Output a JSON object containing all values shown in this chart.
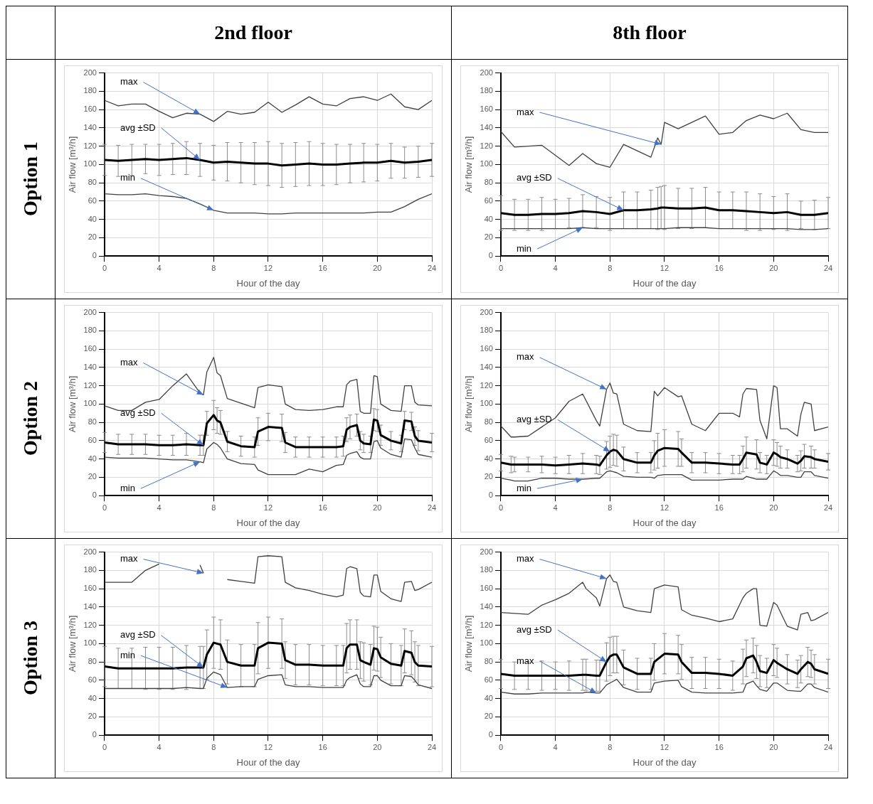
{
  "chart_data": [
    {
      "type": "line",
      "title": "2nd floor",
      "subtitle": "Option 1",
      "xlabel": "Hour of the day",
      "ylabel": "Air flow [m³/h]",
      "xlim": [
        0,
        24
      ],
      "xticks": [
        0,
        4,
        8,
        12,
        16,
        20,
        24
      ],
      "ylim": [
        0,
        200
      ],
      "yticks": [
        0,
        20,
        40,
        60,
        80,
        100,
        120,
        140,
        160,
        180,
        200
      ],
      "grid": true,
      "x": [
        0,
        1,
        2,
        3,
        4,
        5,
        6,
        7,
        8,
        9,
        10,
        11,
        12,
        13,
        14,
        15,
        16,
        17,
        18,
        19,
        20,
        21,
        22,
        23,
        24
      ],
      "series": [
        {
          "color": "#404040",
          "values": [
            170,
            164,
            166,
            166,
            158,
            151,
            156,
            155,
            147,
            158,
            155,
            157,
            168,
            157,
            165,
            174,
            166,
            164,
            172,
            174,
            170,
            177,
            163,
            160,
            170
          ]
        },
        {
          "color": "#000000",
          "values": [
            105,
            104,
            105,
            106,
            105,
            106,
            107,
            105,
            102,
            103,
            102,
            101,
            101,
            99,
            100,
            101,
            100,
            100,
            101,
            102,
            102,
            104,
            102,
            103,
            105
          ],
          "errors": [
            17,
            17,
            17,
            16,
            17,
            17,
            18,
            18,
            19,
            21,
            22,
            23,
            24,
            24,
            24,
            24,
            23,
            22,
            21,
            21,
            20,
            19,
            17,
            17,
            18
          ]
        },
        {
          "color": "#404040",
          "values": [
            68,
            67,
            67,
            68,
            66,
            65,
            63,
            57,
            50,
            47,
            47,
            47,
            46,
            46,
            47,
            47,
            47,
            47,
            47,
            47,
            48,
            48,
            54,
            62,
            68
          ]
        }
      ],
      "annotations": [
        {
          "text": "max",
          "x": 7,
          "y": 155
        },
        {
          "text": "avg ±SD",
          "x": 7,
          "y": 105
        },
        {
          "text": "min",
          "x": 8,
          "y": 50
        }
      ]
    },
    {
      "type": "line",
      "title": "8th floor",
      "xlabel": "Hour of the day",
      "ylabel": "Air flow [m³/h]",
      "xlim": [
        0,
        24
      ],
      "xticks": [
        0,
        4,
        8,
        12,
        16,
        20,
        24
      ],
      "ylim": [
        0,
        200
      ],
      "yticks": [
        0,
        20,
        40,
        60,
        80,
        100,
        120,
        140,
        160,
        180,
        200
      ],
      "grid": true,
      "x": [
        0,
        1,
        2,
        3,
        4,
        5,
        6,
        7,
        8,
        9,
        10,
        11,
        11.5,
        11.75,
        12,
        13,
        14,
        15,
        16,
        17,
        18,
        19,
        20,
        21,
        22,
        23,
        24
      ],
      "series": [
        {
          "color": "#404040",
          "values": [
            136,
            119,
            120,
            121,
            110,
            99,
            112,
            101,
            97,
            122,
            115,
            108,
            129,
            122,
            146,
            139,
            146,
            153,
            133,
            135,
            148,
            154,
            150,
            156,
            138,
            135,
            135
          ]
        },
        {
          "color": "#000000",
          "values": [
            47,
            45,
            45,
            46,
            46,
            47,
            49,
            48,
            46,
            50,
            50,
            51,
            52,
            53,
            53,
            52,
            52,
            53,
            50,
            50,
            49,
            48,
            47,
            48,
            45,
            45,
            47
          ],
          "errors": [
            19,
            17,
            17,
            18,
            16,
            16,
            18,
            17,
            18,
            20,
            20,
            21,
            23,
            23,
            24,
            22,
            22,
            22,
            20,
            20,
            21,
            20,
            18,
            20,
            15,
            16,
            17
          ]
        },
        {
          "color": "#404040",
          "values": [
            30,
            30,
            30,
            30,
            30,
            30,
            31,
            30,
            30,
            30,
            30,
            30,
            30,
            30,
            30,
            31,
            31,
            31,
            30,
            30,
            30,
            30,
            30,
            30,
            29,
            29,
            30
          ]
        }
      ],
      "annotations": [
        {
          "text": "max",
          "x": 11.75,
          "y": 122
        },
        {
          "text": "avg ±SD",
          "x": 9,
          "y": 50
        },
        {
          "text": "min",
          "x": 6,
          "y": 31
        }
      ]
    },
    {
      "type": "line",
      "subtitle": "Option 2",
      "xlabel": "Hour of the day",
      "ylabel": "Air flow [m³/h]",
      "xlim": [
        0,
        24
      ],
      "xticks": [
        0,
        4,
        8,
        12,
        16,
        20,
        24
      ],
      "ylim": [
        0,
        200
      ],
      "yticks": [
        0,
        20,
        40,
        60,
        80,
        100,
        120,
        140,
        160,
        180,
        200
      ],
      "grid": true,
      "x": [
        0,
        1,
        2,
        3,
        4,
        5,
        6,
        7,
        7.25,
        7.5,
        8,
        8.25,
        8.5,
        9,
        10,
        11,
        11.25,
        12,
        13,
        13.25,
        14,
        15,
        16,
        17,
        17.5,
        17.75,
        18,
        18.5,
        18.75,
        19,
        19.5,
        19.75,
        20,
        20.25,
        21,
        21.75,
        22,
        22.5,
        22.75,
        23,
        24
      ],
      "series": [
        {
          "color": "#404040",
          "values": [
            98,
            93,
            93,
            102,
            105,
            120,
            133,
            112,
            110,
            135,
            151,
            134,
            131,
            106,
            101,
            96,
            118,
            121,
            119,
            100,
            94,
            93,
            94,
            97,
            97,
            121,
            125,
            127,
            92,
            90,
            90,
            131,
            130,
            100,
            93,
            92,
            120,
            120,
            102,
            99,
            98
          ]
        },
        {
          "color": "#000000",
          "values": [
            58,
            56,
            56,
            56,
            55,
            55,
            56,
            55,
            55,
            79,
            88,
            82,
            80,
            59,
            54,
            53,
            70,
            75,
            74,
            58,
            53,
            53,
            53,
            53,
            54,
            72,
            75,
            77,
            60,
            57,
            56,
            83,
            82,
            66,
            60,
            57,
            82,
            81,
            65,
            60,
            58
          ],
          "errors": [
            11,
            11,
            11,
            11,
            11,
            11,
            12,
            11,
            11,
            13,
            16,
            14,
            13,
            11,
            11,
            11,
            15,
            15,
            15,
            11,
            11,
            11,
            11,
            11,
            11,
            13,
            13,
            12,
            10,
            10,
            9,
            12,
            12,
            11,
            10,
            9,
            10,
            10,
            10,
            11,
            10
          ]
        },
        {
          "color": "#404040",
          "values": [
            42,
            41,
            41,
            41,
            40,
            39,
            39,
            37,
            36,
            51,
            58,
            56,
            52,
            40,
            35,
            34,
            28,
            23,
            23,
            23,
            23,
            29,
            26,
            33,
            34,
            44,
            46,
            48,
            42,
            40,
            40,
            59,
            60,
            52,
            45,
            42,
            62,
            61,
            52,
            45,
            42
          ]
        }
      ],
      "annotations": [
        {
          "text": "max",
          "x": 7.25,
          "y": 110
        },
        {
          "text": "avg ±SD",
          "x": 7.25,
          "y": 55
        },
        {
          "text": "min",
          "x": 7,
          "y": 37
        }
      ]
    },
    {
      "type": "line",
      "xlabel": "Hour of the day",
      "ylabel": "Air flow [m³/h]",
      "xlim": [
        0,
        24
      ],
      "xticks": [
        0,
        4,
        8,
        12,
        16,
        20,
        24
      ],
      "ylim": [
        0,
        200
      ],
      "yticks": [
        0,
        20,
        40,
        60,
        80,
        100,
        120,
        140,
        160,
        180,
        200
      ],
      "grid": true,
      "x": [
        0,
        0.75,
        1,
        2,
        3,
        4,
        5,
        6,
        7,
        7.25,
        7.75,
        8,
        8.25,
        8.5,
        9,
        10,
        11,
        11.25,
        11.5,
        12,
        13,
        13.25,
        14,
        15,
        16,
        17,
        17.5,
        17.75,
        18,
        18.75,
        19,
        19.5,
        20,
        20.25,
        20.5,
        21,
        21.75,
        22,
        22.25,
        22.75,
        23,
        24
      ],
      "series": [
        {
          "color": "#404040",
          "values": [
            76,
            64,
            64,
            65,
            75,
            85,
            103,
            111,
            82,
            76,
            116,
            123,
            112,
            111,
            78,
            71,
            70,
            114,
            109,
            118,
            108,
            109,
            78,
            71,
            90,
            90,
            86,
            111,
            117,
            116,
            82,
            62,
            120,
            118,
            73,
            73,
            65,
            89,
            102,
            100,
            71,
            75
          ]
        },
        {
          "color": "#000000",
          "values": [
            36,
            34,
            34,
            34,
            34,
            33,
            34,
            35,
            34,
            33,
            44,
            48,
            50,
            49,
            40,
            36,
            36,
            44,
            49,
            52,
            51,
            47,
            36,
            36,
            35,
            34,
            34,
            40,
            47,
            45,
            36,
            34,
            47,
            45,
            42,
            40,
            35,
            38,
            43,
            42,
            40,
            37
          ],
          "errors": [
            9,
            9,
            8,
            8,
            9,
            9,
            10,
            11,
            10,
            10,
            15,
            17,
            17,
            17,
            13,
            11,
            11,
            16,
            19,
            20,
            19,
            15,
            11,
            11,
            11,
            10,
            10,
            14,
            17,
            16,
            11,
            10,
            14,
            13,
            12,
            10,
            9,
            11,
            13,
            12,
            10,
            9
          ]
        },
        {
          "color": "#404040",
          "values": [
            19,
            17,
            16,
            16,
            19,
            19,
            18,
            18,
            19,
            19,
            26,
            27,
            26,
            25,
            21,
            20,
            20,
            19,
            22,
            23,
            23,
            23,
            17,
            17,
            17,
            18,
            18,
            18,
            21,
            18,
            18,
            18,
            27,
            25,
            22,
            22,
            20,
            20,
            26,
            26,
            22,
            19
          ]
        }
      ],
      "annotations": [
        {
          "text": "max",
          "x": 7.75,
          "y": 116
        },
        {
          "text": "avg ±SD",
          "x": 8,
          "y": 48
        },
        {
          "text": "min",
          "x": 6,
          "y": 18
        }
      ]
    },
    {
      "type": "line",
      "subtitle": "Option 3",
      "xlabel": "Hour of the day",
      "ylabel": "Air flow [m³/h]",
      "xlim": [
        0,
        24
      ],
      "xticks": [
        0,
        4,
        8,
        12,
        16,
        20,
        24
      ],
      "ylim": [
        0,
        200
      ],
      "yticks": [
        0,
        20,
        40,
        60,
        80,
        100,
        120,
        140,
        160,
        180,
        200
      ],
      "grid": true,
      "x": [
        0,
        1,
        2,
        3,
        4,
        5,
        6,
        7,
        7.25,
        7.5,
        8,
        8.5,
        9,
        10,
        11,
        11.25,
        12,
        13,
        13.25,
        14,
        15,
        16,
        17,
        17.5,
        17.75,
        18,
        18.5,
        18.75,
        19,
        19.5,
        19.75,
        20,
        20.25,
        21,
        21.75,
        22,
        22.5,
        22.75,
        23,
        24
      ],
      "series": [
        {
          "color": "#404040",
          "values": [
            167,
            167,
            167,
            180,
            187,
            null,
            null,
            186,
            177,
            null,
            null,
            null,
            170,
            168,
            166,
            195,
            196,
            195,
            167,
            161,
            158,
            154,
            151,
            153,
            182,
            184,
            182,
            156,
            152,
            151,
            175,
            175,
            157,
            149,
            146,
            167,
            168,
            158,
            159,
            167
          ]
        },
        {
          "color": "#000000",
          "values": [
            75,
            73,
            73,
            73,
            73,
            73,
            74,
            74,
            74,
            88,
            101,
            99,
            80,
            76,
            76,
            95,
            101,
            100,
            82,
            77,
            77,
            76,
            76,
            76,
            95,
            99,
            99,
            82,
            80,
            77,
            95,
            94,
            85,
            78,
            76,
            92,
            90,
            80,
            76,
            75
          ],
          "errors": [
            22,
            22,
            22,
            23,
            23,
            23,
            24,
            23,
            23,
            27,
            28,
            27,
            24,
            23,
            23,
            28,
            28,
            27,
            20,
            22,
            22,
            22,
            22,
            22,
            27,
            27,
            27,
            20,
            21,
            22,
            24,
            24,
            22,
            22,
            22,
            24,
            24,
            22,
            22,
            22
          ]
        },
        {
          "color": "#404040",
          "values": [
            51,
            51,
            51,
            51,
            51,
            51,
            52,
            51,
            51,
            62,
            69,
            66,
            52,
            53,
            53,
            61,
            65,
            66,
            55,
            53,
            53,
            52,
            52,
            52,
            60,
            63,
            66,
            56,
            53,
            53,
            65,
            65,
            60,
            54,
            54,
            65,
            64,
            60,
            55,
            51
          ]
        }
      ],
      "annotations": [
        {
          "text": "max",
          "x": 7.25,
          "y": 177
        },
        {
          "text": "avg ±SD",
          "x": 7.25,
          "y": 74
        },
        {
          "text": "min",
          "x": 9,
          "y": 52
        }
      ]
    },
    {
      "type": "line",
      "xlabel": "Hour of the day",
      "ylabel": "Air flow [m³/h]",
      "xlim": [
        0,
        24
      ],
      "xticks": [
        0,
        4,
        8,
        12,
        16,
        20,
        24
      ],
      "ylim": [
        0,
        200
      ],
      "yticks": [
        0,
        20,
        40,
        60,
        80,
        100,
        120,
        140,
        160,
        180,
        200
      ],
      "grid": true,
      "x": [
        0,
        1,
        2,
        3,
        4,
        5,
        6,
        6.25,
        7,
        7.25,
        7.75,
        8,
        8.25,
        8.5,
        9,
        10,
        11,
        11.25,
        12,
        13,
        13.25,
        14,
        15,
        16,
        17,
        17.75,
        18,
        18.5,
        18.75,
        19,
        19.5,
        20,
        20.25,
        21,
        21.75,
        22,
        22.5,
        22.75,
        23,
        24
      ],
      "series": [
        {
          "color": "#404040",
          "values": [
            134,
            133,
            132,
            142,
            148,
            155,
            167,
            160,
            150,
            141,
            171,
            175,
            168,
            167,
            140,
            136,
            134,
            160,
            164,
            162,
            137,
            131,
            128,
            124,
            127,
            150,
            155,
            160,
            160,
            120,
            119,
            145,
            142,
            119,
            115,
            132,
            134,
            125,
            126,
            134
          ]
        },
        {
          "color": "#000000",
          "values": [
            67,
            65,
            65,
            65,
            65,
            65,
            66,
            66,
            65,
            65,
            80,
            86,
            88,
            88,
            74,
            67,
            67,
            80,
            89,
            88,
            80,
            68,
            68,
            67,
            65,
            75,
            84,
            87,
            80,
            70,
            68,
            82,
            79,
            72,
            67,
            72,
            80,
            78,
            72,
            67
          ],
          "errors": [
            16,
            15,
            15,
            16,
            15,
            16,
            17,
            17,
            17,
            17,
            21,
            21,
            20,
            20,
            19,
            17,
            17,
            20,
            22,
            21,
            19,
            17,
            17,
            16,
            16,
            19,
            20,
            19,
            18,
            17,
            16,
            17,
            16,
            16,
            15,
            15,
            16,
            15,
            16,
            16
          ]
        },
        {
          "color": "#404040",
          "values": [
            47,
            45,
            45,
            46,
            46,
            46,
            46,
            47,
            46,
            46,
            55,
            57,
            59,
            61,
            52,
            47,
            47,
            57,
            59,
            60,
            53,
            47,
            46,
            46,
            46,
            47,
            56,
            59,
            54,
            50,
            48,
            57,
            57,
            49,
            48,
            48,
            56,
            56,
            52,
            47
          ]
        }
      ],
      "annotations": [
        {
          "text": "max",
          "x": 7.75,
          "y": 171
        },
        {
          "text": "avg ±SD",
          "x": 7.75,
          "y": 80
        },
        {
          "text": "max",
          "x": 7,
          "y": 46
        }
      ]
    }
  ]
}
